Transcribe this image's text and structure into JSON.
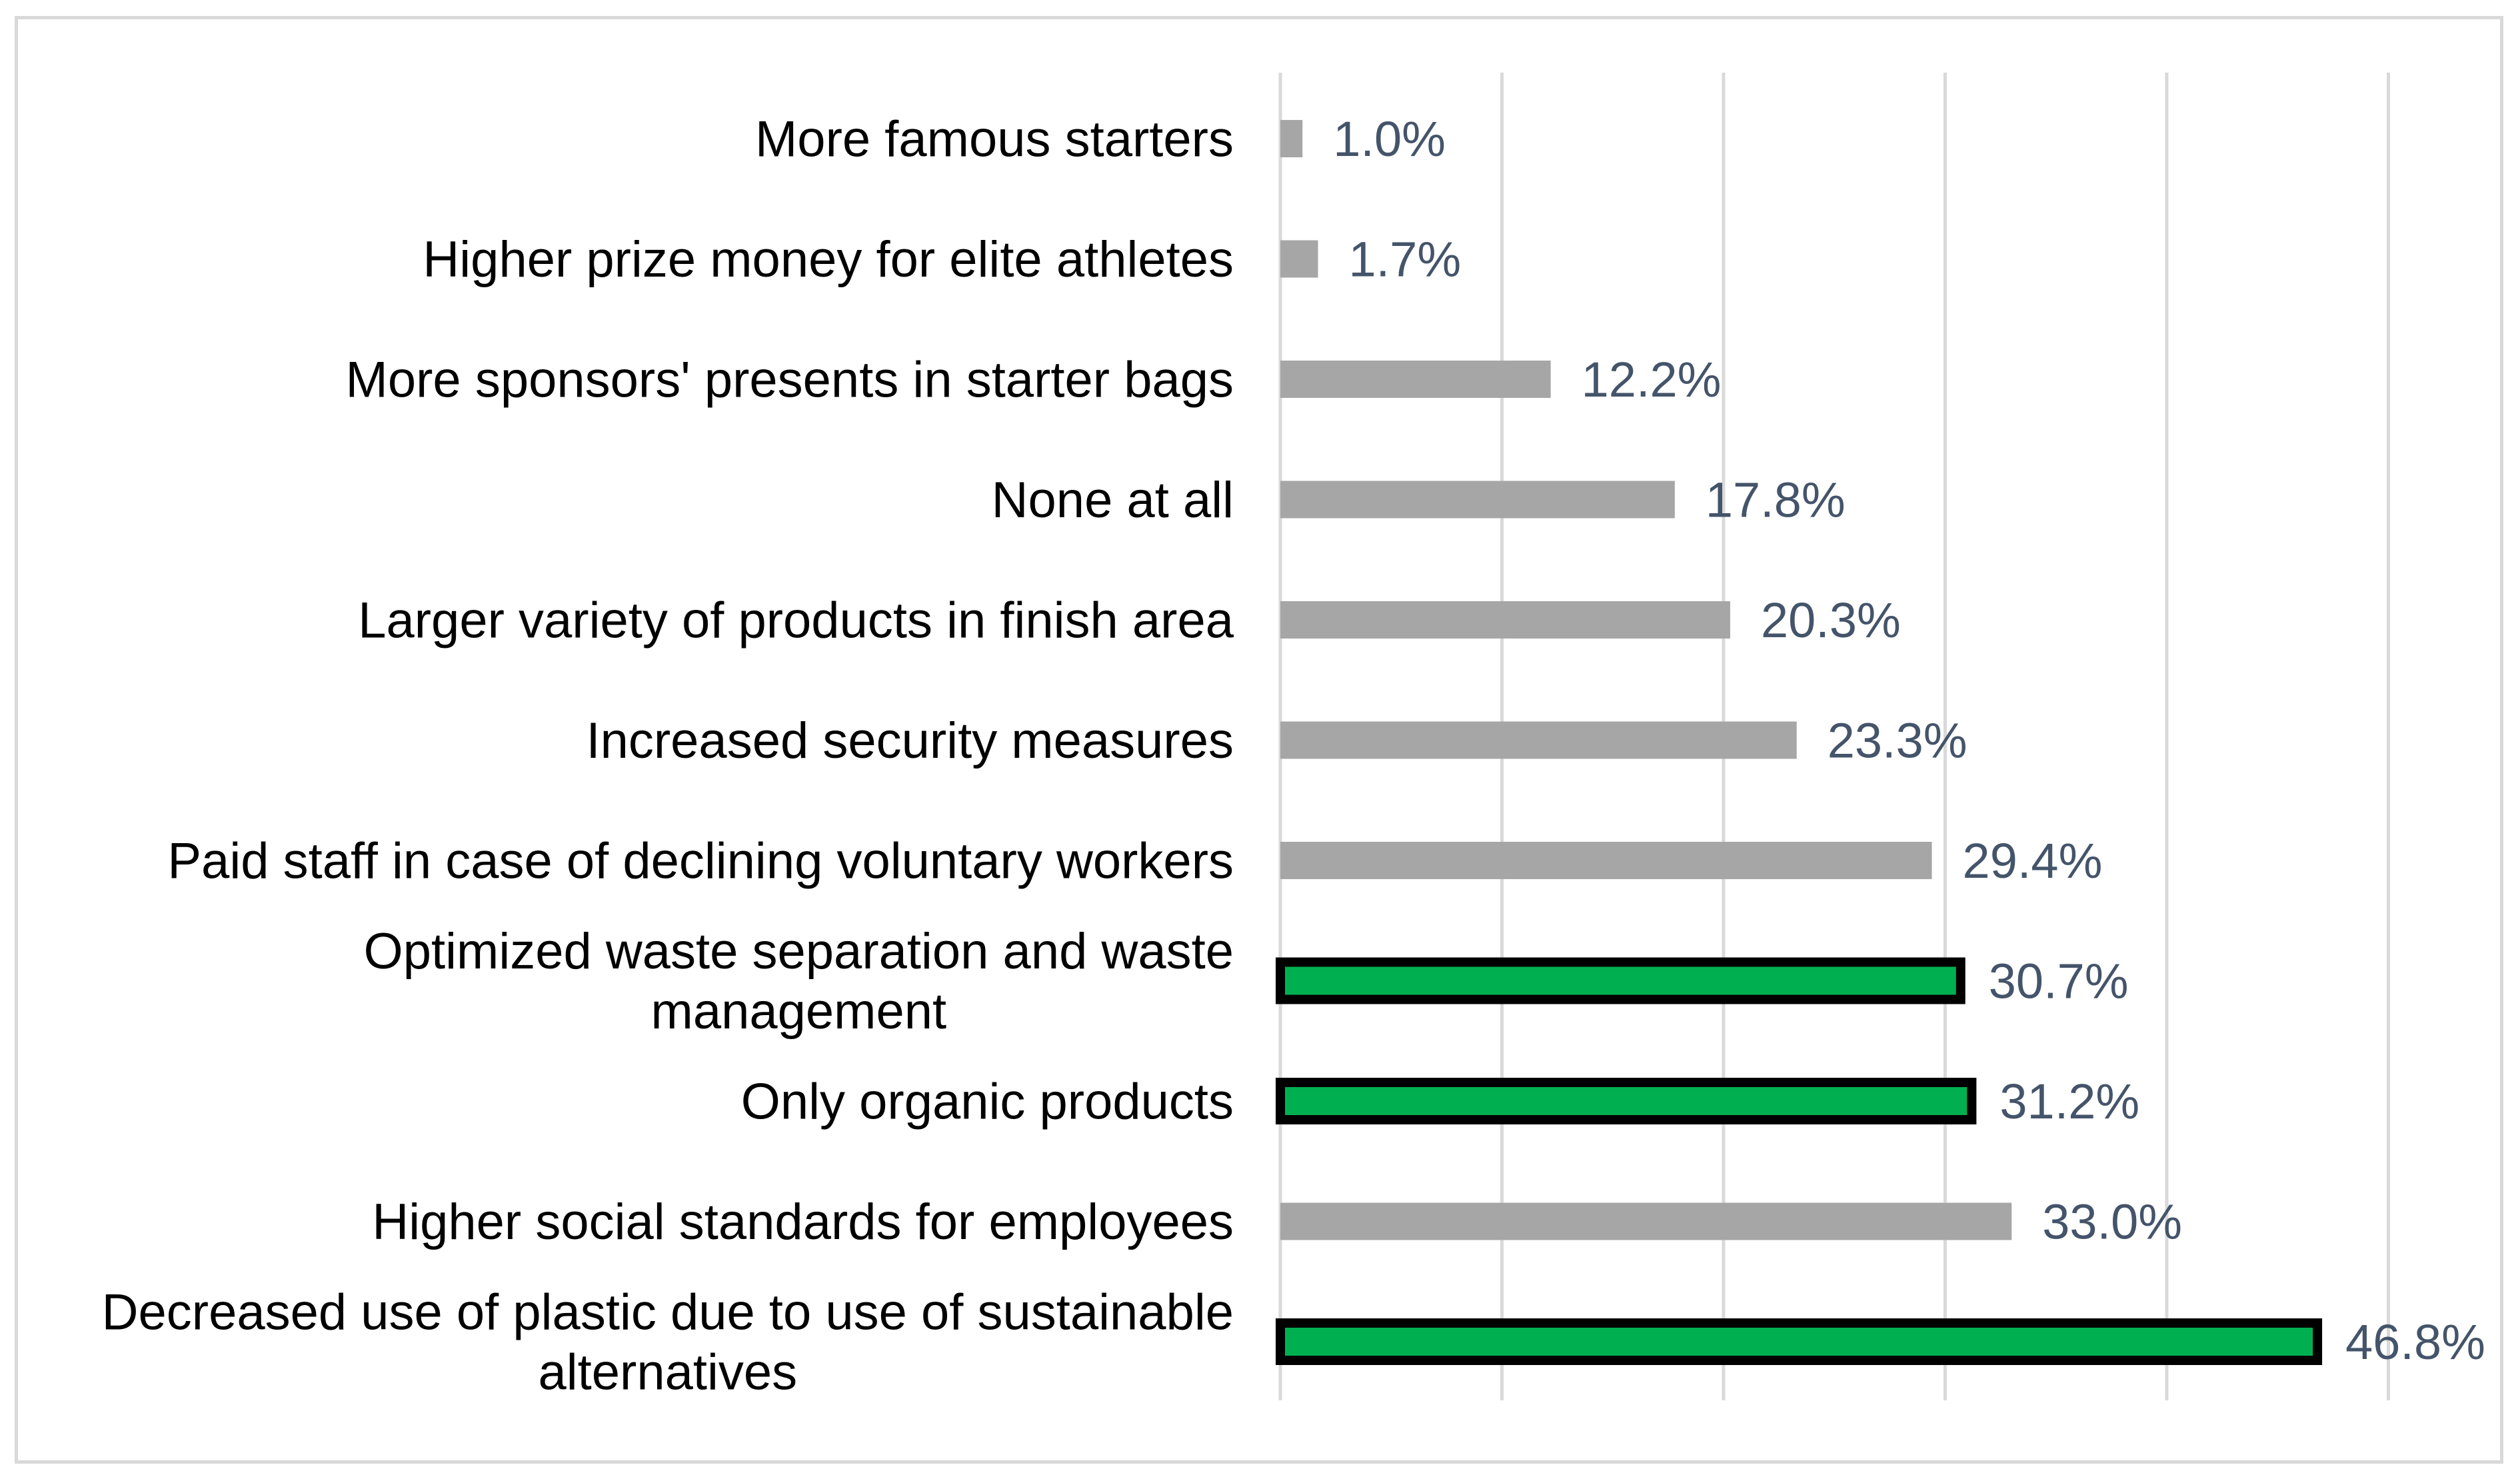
{
  "chart_data": {
    "type": "bar",
    "orientation": "horizontal",
    "title": "",
    "xlabel": "",
    "ylabel": "",
    "xlim": [
      0,
      50
    ],
    "gridlines": [
      0,
      10,
      20,
      30,
      40,
      50
    ],
    "grid": true,
    "legend": "none",
    "categories": [
      {
        "label_lines": [
          "More famous starters"
        ],
        "value": 1.0,
        "value_label": "1.0%",
        "highlight": false
      },
      {
        "label_lines": [
          "Higher prize money for elite athletes"
        ],
        "value": 1.7,
        "value_label": "1.7%",
        "highlight": false
      },
      {
        "label_lines": [
          "More sponsors' presents in starter bags"
        ],
        "value": 12.2,
        "value_label": "12.2%",
        "highlight": false
      },
      {
        "label_lines": [
          "None at all"
        ],
        "value": 17.8,
        "value_label": "17.8%",
        "highlight": false
      },
      {
        "label_lines": [
          "Larger variety of products in finish area"
        ],
        "value": 20.3,
        "value_label": "20.3%",
        "highlight": false
      },
      {
        "label_lines": [
          "Increased security measures"
        ],
        "value": 23.3,
        "value_label": "23.3%",
        "highlight": false
      },
      {
        "label_lines": [
          "Paid staff in case of declining voluntary workers"
        ],
        "value": 29.4,
        "value_label": "29.4%",
        "highlight": false
      },
      {
        "label_lines": [
          "Optimized waste separation and waste",
          "management"
        ],
        "value": 30.7,
        "value_label": "30.7%",
        "highlight": true
      },
      {
        "label_lines": [
          "Only organic products"
        ],
        "value": 31.2,
        "value_label": "31.2%",
        "highlight": true
      },
      {
        "label_lines": [
          "Higher social standards for employees"
        ],
        "value": 33.0,
        "value_label": "33.0%",
        "highlight": false
      },
      {
        "label_lines": [
          "Decreased use of plastic due to use of sustainable",
          "alternatives"
        ],
        "value": 46.8,
        "value_label": "46.8%",
        "highlight": true
      }
    ],
    "colors": {
      "bar": "#a6a6a6",
      "highlight_fill": "#00b050",
      "highlight_stroke": "#000000",
      "gridline": "#d9d9d9",
      "value_label": "#44546a",
      "category_label": "#000000"
    }
  }
}
